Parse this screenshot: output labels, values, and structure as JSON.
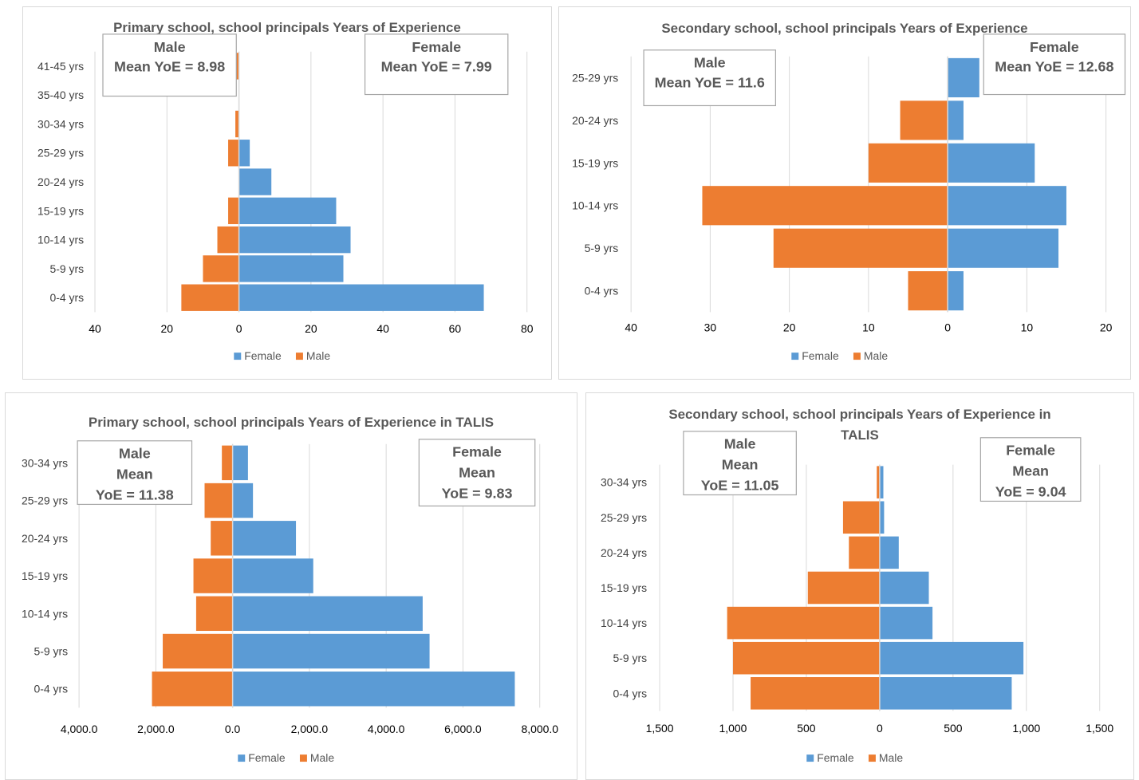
{
  "colors": {
    "female": "#5b9bd5",
    "male": "#ed7d31",
    "grid": "#d9d9d9",
    "text": "#595959"
  },
  "chart_data": [
    {
      "type": "bar",
      "orientation": "horizontal-population-pyramid",
      "title": [
        "Primary school, school principals Years of Experience"
      ],
      "categories": [
        "0-4 yrs",
        "5-9 yrs",
        "10-14 yrs",
        "15-19 yrs",
        "20-24 yrs",
        "25-29 yrs",
        "30-34 yrs",
        "35-40 yrs",
        "41-45 yrs"
      ],
      "series": [
        {
          "name": "Female",
          "values": [
            68,
            29,
            31,
            27,
            9,
            3,
            0,
            0,
            0
          ]
        },
        {
          "name": "Male",
          "values": [
            -16,
            -10,
            -6,
            -3,
            0,
            -3,
            -1,
            0,
            -1
          ]
        }
      ],
      "xlim": [
        -40,
        80
      ],
      "xticks": [
        -40,
        -20,
        0,
        20,
        40,
        60,
        80
      ],
      "xtick_labels": [
        "40",
        "20",
        "0",
        "20",
        "40",
        "60",
        "80"
      ],
      "legend": {
        "position": "bottom",
        "entries": [
          "Female",
          "Male"
        ]
      },
      "annotations": [
        {
          "lines": [
            "Male",
            "Mean YoE = 8.98"
          ]
        },
        {
          "lines": [
            "Female",
            "Mean YoE = 7.99"
          ]
        }
      ]
    },
    {
      "type": "bar",
      "orientation": "horizontal-population-pyramid",
      "title": [
        "Secondary school, school principals Years of Experience"
      ],
      "categories": [
        "0-4 yrs",
        "5-9 yrs",
        "10-14 yrs",
        "15-19 yrs",
        "20-24 yrs",
        "25-29 yrs"
      ],
      "series": [
        {
          "name": "Female",
          "values": [
            2,
            14,
            15,
            11,
            2,
            4
          ]
        },
        {
          "name": "Male",
          "values": [
            -5,
            -22,
            -31,
            -10,
            -6,
            0
          ]
        }
      ],
      "xlim": [
        -40,
        20
      ],
      "xticks": [
        -40,
        -30,
        -20,
        -10,
        0,
        10,
        20
      ],
      "xtick_labels": [
        "40",
        "30",
        "20",
        "10",
        "0",
        "10",
        "20"
      ],
      "legend": {
        "position": "bottom",
        "entries": [
          "Female",
          "Male"
        ]
      },
      "annotations": [
        {
          "lines": [
            "Male",
            "Mean YoE = 11.6"
          ]
        },
        {
          "lines": [
            "Female",
            "Mean YoE = 12.68"
          ]
        }
      ]
    },
    {
      "type": "bar",
      "orientation": "horizontal-population-pyramid",
      "title": [
        "Primary school, school principals Years of Experience in TALIS"
      ],
      "categories": [
        "0-4 yrs",
        "5-9 yrs",
        "10-14 yrs",
        "15-19 yrs",
        "20-24 yrs",
        "25-29 yrs",
        "30-34 yrs"
      ],
      "series": [
        {
          "name": "Female",
          "values": [
            7350,
            5130,
            4950,
            2100,
            1650,
            530,
            400
          ]
        },
        {
          "name": "Male",
          "values": [
            -2100,
            -1820,
            -950,
            -1020,
            -570,
            -730,
            -280
          ]
        }
      ],
      "xlim": [
        -4000,
        8000
      ],
      "xticks": [
        -4000,
        -2000,
        0,
        2000,
        4000,
        6000,
        8000
      ],
      "xtick_labels": [
        "4,000.0",
        "2,000.0",
        "0.0",
        "2,000.0",
        "4,000.0",
        "6,000.0",
        "8,000.0"
      ],
      "legend": {
        "position": "bottom",
        "entries": [
          "Female",
          "Male"
        ]
      },
      "annotations": [
        {
          "lines": [
            "Male",
            "Mean",
            "YoE = 11.38"
          ]
        },
        {
          "lines": [
            "Female",
            "Mean",
            "YoE = 9.83"
          ]
        }
      ]
    },
    {
      "type": "bar",
      "orientation": "horizontal-population-pyramid",
      "title": [
        "Secondary school, school principals Years of Experience in",
        "TALIS"
      ],
      "categories": [
        "0-4 yrs",
        "5-9 yrs",
        "10-14 yrs",
        "15-19 yrs",
        "20-24 yrs",
        "25-29 yrs",
        "30-34 yrs"
      ],
      "series": [
        {
          "name": "Female",
          "values": [
            900,
            980,
            360,
            335,
            130,
            30,
            25
          ]
        },
        {
          "name": "Male",
          "values": [
            -880,
            -1000,
            -1040,
            -490,
            -210,
            -250,
            -20
          ]
        }
      ],
      "xlim": [
        -1500,
        1500
      ],
      "xticks": [
        -1500,
        -1000,
        -500,
        0,
        500,
        1000,
        1500
      ],
      "xtick_labels": [
        "1,500",
        "1,000",
        "500",
        "0",
        "500",
        "1,000",
        "1,500"
      ],
      "legend": {
        "position": "bottom",
        "entries": [
          "Female",
          "Male"
        ]
      },
      "annotations": [
        {
          "lines": [
            "Male",
            "Mean",
            "YoE = 11.05"
          ]
        },
        {
          "lines": [
            "Female",
            "Mean",
            "YoE = 9.04"
          ]
        }
      ]
    }
  ]
}
